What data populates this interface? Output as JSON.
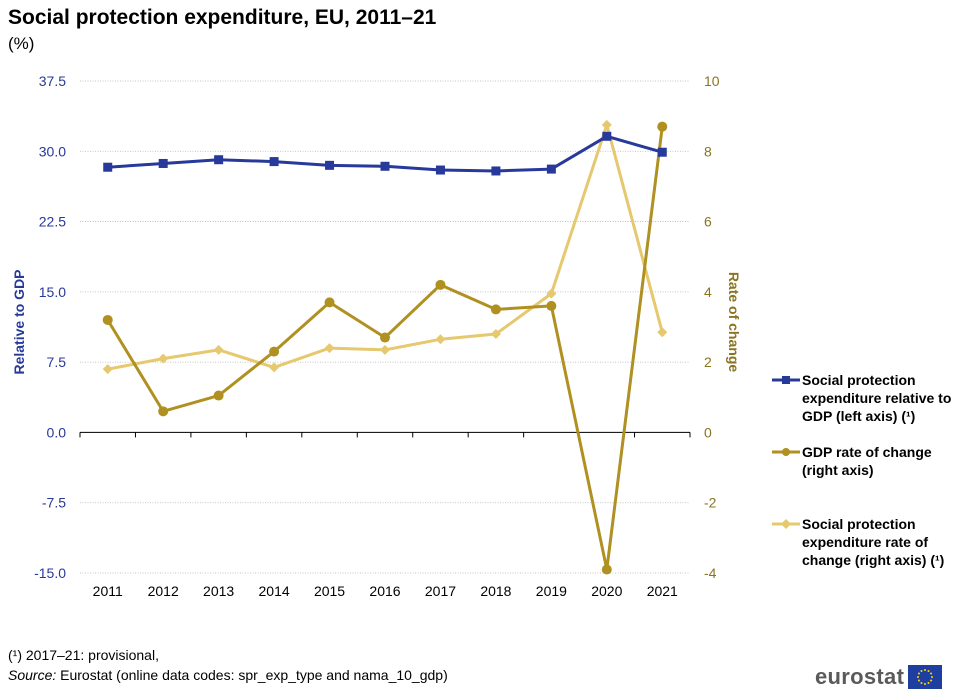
{
  "title": "Social protection expenditure, EU, 2011–21",
  "subtitle": "(%)",
  "chart_data": {
    "type": "line",
    "categories": [
      "2011",
      "2012",
      "2013",
      "2014",
      "2015",
      "2016",
      "2017",
      "2018",
      "2019",
      "2020",
      "2021"
    ],
    "left_axis": {
      "label": "Relative to GDP",
      "range": [
        -15,
        37.5
      ],
      "ticks": [
        "-15.0",
        "-7.5",
        "0.0",
        "7.5",
        "15.0",
        "22.5",
        "30.0",
        "37.5"
      ],
      "color": "#27399a"
    },
    "right_axis": {
      "label": "Rate of change",
      "range": [
        -4,
        10
      ],
      "ticks": [
        "-4",
        "-2",
        "0",
        "2",
        "4",
        "6",
        "8",
        "10"
      ],
      "color": "#8a7420"
    },
    "grid": true,
    "legend_position": "right",
    "series": [
      {
        "name": "Social protection expenditure relative to GDP (left axis) (¹)",
        "axis": "left",
        "color": "#27399a",
        "marker": "square",
        "values": [
          28.3,
          28.7,
          29.1,
          28.9,
          28.5,
          28.4,
          28.0,
          27.9,
          28.1,
          31.6,
          29.9
        ]
      },
      {
        "name": "GDP rate of change (right axis)",
        "axis": "right",
        "color": "#b09020",
        "marker": "circle",
        "values": [
          3.2,
          0.6,
          1.05,
          2.3,
          3.7,
          2.7,
          4.2,
          3.5,
          3.6,
          -3.9,
          8.7
        ]
      },
      {
        "name": "Social protection expenditure rate of change (right axis) (¹)",
        "axis": "right",
        "color": "#e6c86e",
        "marker": "diamond",
        "values": [
          1.8,
          2.1,
          2.35,
          1.85,
          2.4,
          2.35,
          2.65,
          2.8,
          3.95,
          8.75,
          2.85
        ]
      }
    ]
  },
  "footnote": "(¹) 2017–21: provisional,",
  "source": {
    "label": "Source:",
    "text": " Eurostat (online data codes: spr_exp_type and nama_10_gdp)"
  },
  "logo_text": "eurostat"
}
